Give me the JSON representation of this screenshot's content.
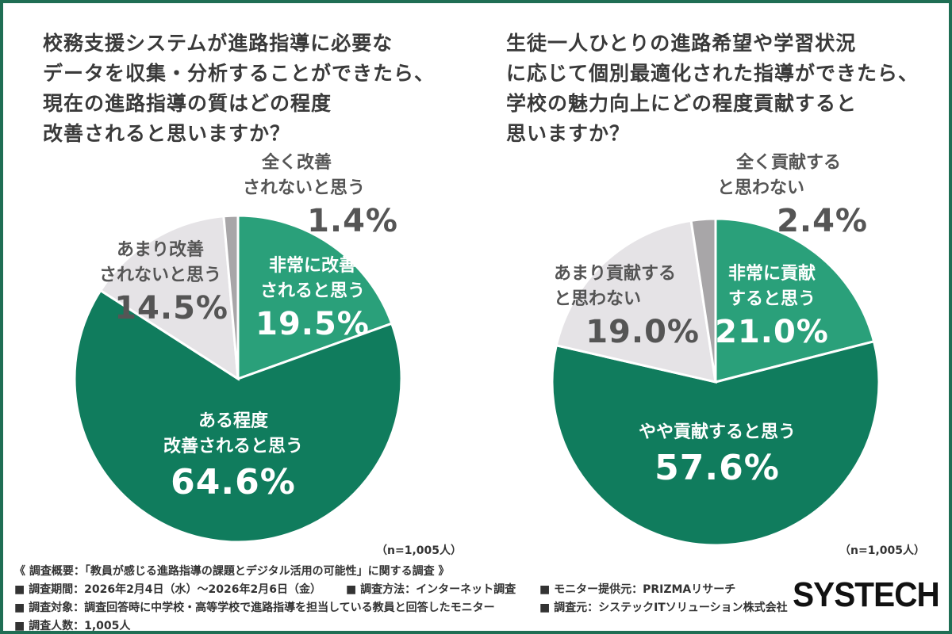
{
  "chart_data": [
    {
      "type": "pie",
      "title_lines": [
        "校務支援システムが進路指導に必要な",
        "データを収集・分析することができたら、",
        "現在の進路指導の質はどの程度",
        "改善されると思いますか？"
      ],
      "slices": [
        {
          "label_lines": [
            "非常に改善",
            "されると思う"
          ],
          "value": 19.5,
          "value_label": "19.5%",
          "color": "#2aa07a"
        },
        {
          "label_lines": [
            "ある程度",
            "改善されると思う"
          ],
          "value": 64.6,
          "value_label": "64.6%",
          "color": "#107c5d"
        },
        {
          "label_lines": [
            "あまり改善",
            "されないと思う"
          ],
          "value": 14.5,
          "value_label": "14.5%",
          "color": "#e5e3e6"
        },
        {
          "label_lines": [
            "全く改善",
            "されないと思う"
          ],
          "value": 1.4,
          "value_label": "1.4%",
          "color": "#a8a6a8"
        }
      ],
      "n_note": "（n=1,005人）"
    },
    {
      "type": "pie",
      "title_lines": [
        "生徒一人ひとりの進路希望や学習状況",
        "に応じて個別最適化された指導ができたら、",
        "学校の魅力向上にどの程度貢献すると",
        "思いますか？"
      ],
      "slices": [
        {
          "label_lines": [
            "非常に貢献",
            "すると思う"
          ],
          "value": 21.0,
          "value_label": "21.0%",
          "color": "#2aa07a"
        },
        {
          "label_lines": [
            "やや貢献すると思う"
          ],
          "value": 57.6,
          "value_label": "57.6%",
          "color": "#107c5d"
        },
        {
          "label_lines": [
            "あまり貢献する",
            "と思わない"
          ],
          "value": 19.0,
          "value_label": "19.0%",
          "color": "#e5e3e6"
        },
        {
          "label_lines": [
            "全く貢献する",
            "と思わない"
          ],
          "value": 2.4,
          "value_label": "2.4%",
          "color": "#a8a6a8"
        }
      ],
      "n_note": "（n=1,005人）"
    }
  ],
  "footer": {
    "line1": "《 調査概要：「教員が感じる進路指導の課題とデジタル活用の可能性」に関する調査 》",
    "line2a": "■ 調査期間：2026年2月4日（水）〜2026年2月6日（金）",
    "line2b": "■ 調査方法：インターネット調査",
    "line2c": "■ モニター提供元：PRIZMAリサーチ",
    "line3a": "■ 調査対象：調査回答時に中学校・高等学校で進路指導を担当している教員と回答したモニター",
    "line3b": "■ 調査元：システックITソリューション株式会社",
    "line4": "■ 調査人数：1,005人"
  },
  "brand": "SYSTECH"
}
